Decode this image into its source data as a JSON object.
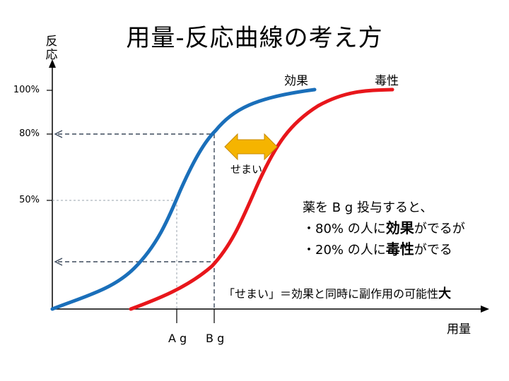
{
  "title": "用量-反応曲線の考え方",
  "axes": {
    "y_label": "反応",
    "x_label": "用量",
    "y_ticks": [
      "100%",
      "80%",
      "50%"
    ],
    "x_ticks": [
      "A g",
      "B g"
    ]
  },
  "series": {
    "effect": {
      "name": "効果",
      "color": "#1a6fba"
    },
    "toxicity": {
      "name": "毒性",
      "color": "#e8161b"
    }
  },
  "narrow": {
    "label": "せまい",
    "arrow_color": "#f5b400"
  },
  "note": {
    "line1": "薬を B g 投与すると、",
    "line2_prefix": "・80% の人に",
    "line2_bold": "効果",
    "line2_suffix": "がでるが",
    "line3_prefix": "・20% の人に",
    "line3_bold": "毒性",
    "line3_suffix": "がでる"
  },
  "bottom_note": {
    "text": "「せまい」＝効果と同時に副作用の可能性",
    "bold": "大"
  }
}
